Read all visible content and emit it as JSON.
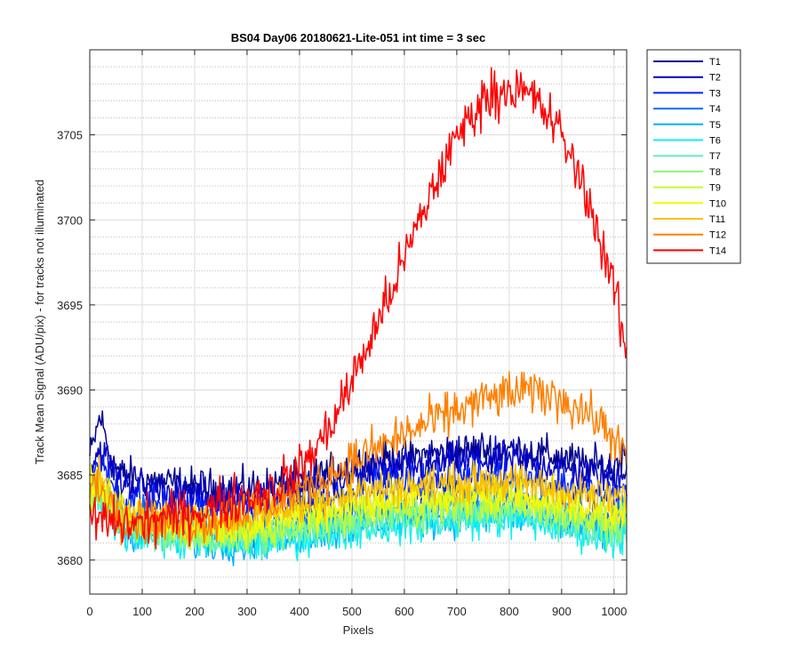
{
  "chart_data": {
    "type": "line",
    "title": "BS04 Day06 20180621-Lite-051 int time = 3 sec",
    "xlabel": "Pixels",
    "ylabel": "Track Mean Signal (ADU/pix) - for tracks not illuminated",
    "xlim": [
      0,
      1024
    ],
    "ylim": [
      3678,
      3710
    ],
    "xticks": [
      0,
      100,
      200,
      300,
      400,
      500,
      600,
      700,
      800,
      900,
      1000
    ],
    "yticks": [
      3680,
      3685,
      3690,
      3695,
      3700,
      3705
    ],
    "grid": true,
    "minor_grid_y": true,
    "legend_position": "outside-top-right",
    "x_sample": [
      0,
      20,
      40,
      60,
      100,
      150,
      200,
      250,
      300,
      350,
      400,
      450,
      500,
      550,
      600,
      650,
      700,
      750,
      800,
      850,
      900,
      950,
      1000,
      1024
    ],
    "series": [
      {
        "name": "T1",
        "color": "#00008f",
        "values": [
          3686,
          3688.5,
          3686,
          3685,
          3684.8,
          3684.5,
          3684.3,
          3684.2,
          3684.2,
          3684.4,
          3684.6,
          3685,
          3685.5,
          3685.9,
          3686,
          3686.2,
          3686.4,
          3686.5,
          3686.5,
          3686.3,
          3686,
          3685.6,
          3685.5,
          3686.5
        ]
      },
      {
        "name": "T2",
        "color": "#0000c8",
        "values": [
          3685.5,
          3686.5,
          3685.5,
          3684.6,
          3684.3,
          3684,
          3683.8,
          3683.7,
          3683.7,
          3683.9,
          3684.1,
          3684.5,
          3684.9,
          3685.2,
          3685.4,
          3685.6,
          3685.8,
          3685.9,
          3685.9,
          3685.7,
          3685.4,
          3685,
          3684.8,
          3685.5
        ]
      },
      {
        "name": "T3",
        "color": "#0020ff",
        "values": [
          3684.8,
          3685.4,
          3684.6,
          3683.8,
          3683.5,
          3683.2,
          3683,
          3682.9,
          3682.9,
          3683.1,
          3683.3,
          3683.6,
          3684,
          3684.3,
          3684.5,
          3684.6,
          3684.8,
          3684.9,
          3684.9,
          3684.7,
          3684.4,
          3684,
          3683.7,
          3684.2
        ]
      },
      {
        "name": "T4",
        "color": "#0070ff",
        "values": [
          3684.2,
          3684.6,
          3683.8,
          3682.8,
          3682.4,
          3682,
          3681.8,
          3681.7,
          3681.7,
          3681.9,
          3682.1,
          3682.4,
          3682.7,
          3682.9,
          3683.1,
          3683.2,
          3683.4,
          3683.5,
          3683.5,
          3683.3,
          3683,
          3682.6,
          3682.3,
          3682.7
        ]
      },
      {
        "name": "T5",
        "color": "#00b0ff",
        "values": [
          3683.6,
          3684,
          3683,
          3682,
          3681.6,
          3681.3,
          3681.1,
          3681,
          3681,
          3681.2,
          3681.4,
          3681.7,
          3682,
          3682.2,
          3682.3,
          3682.4,
          3682.5,
          3682.6,
          3682.6,
          3682.4,
          3682.1,
          3681.8,
          3681.5,
          3681.9
        ]
      },
      {
        "name": "T6",
        "color": "#10f0f0",
        "values": [
          3683.4,
          3683.7,
          3682.8,
          3681.8,
          3681.5,
          3681.2,
          3681,
          3680.9,
          3680.9,
          3681.1,
          3681.3,
          3681.6,
          3681.8,
          3682,
          3682.1,
          3682.2,
          3682.3,
          3682.4,
          3682.4,
          3682.2,
          3681.9,
          3681.6,
          3681.3,
          3681.6
        ]
      },
      {
        "name": "T7",
        "color": "#60f0c0",
        "values": [
          3683.6,
          3683.9,
          3683,
          3682.1,
          3681.8,
          3681.5,
          3681.3,
          3681.2,
          3681.2,
          3681.4,
          3681.6,
          3681.9,
          3682.2,
          3682.4,
          3682.5,
          3682.6,
          3682.7,
          3682.8,
          3682.8,
          3682.6,
          3682.3,
          3682,
          3681.7,
          3682
        ]
      },
      {
        "name": "T8",
        "color": "#90f870",
        "values": [
          3683.8,
          3684,
          3683.1,
          3682.2,
          3681.9,
          3681.6,
          3681.4,
          3681.4,
          3681.5,
          3681.7,
          3681.9,
          3682.2,
          3682.5,
          3682.7,
          3682.8,
          3682.9,
          3683,
          3683.1,
          3683.1,
          3682.9,
          3682.6,
          3682.3,
          3682,
          3682.3
        ]
      },
      {
        "name": "T9",
        "color": "#c8f830",
        "values": [
          3684,
          3684.2,
          3683.3,
          3682.4,
          3682.1,
          3681.9,
          3681.7,
          3681.7,
          3681.8,
          3682,
          3682.3,
          3682.6,
          3682.9,
          3683.1,
          3683.2,
          3683.3,
          3683.4,
          3683.5,
          3683.5,
          3683.3,
          3683,
          3682.7,
          3682.4,
          3682.7
        ]
      },
      {
        "name": "T10",
        "color": "#f8f800",
        "values": [
          3684.2,
          3684.4,
          3683.5,
          3682.6,
          3682.3,
          3682.1,
          3682,
          3682,
          3682.1,
          3682.4,
          3682.7,
          3683,
          3683.3,
          3683.5,
          3683.6,
          3683.7,
          3683.8,
          3683.9,
          3683.9,
          3683.7,
          3683.4,
          3683.1,
          3682.8,
          3683.1
        ]
      },
      {
        "name": "T11",
        "color": "#f8c000",
        "values": [
          3684.4,
          3684.6,
          3683.7,
          3682.8,
          3682.6,
          3682.4,
          3682.3,
          3682.4,
          3682.6,
          3682.9,
          3683.3,
          3683.7,
          3684,
          3684.2,
          3684.3,
          3684.4,
          3684.5,
          3684.6,
          3684.6,
          3684.4,
          3684.1,
          3683.8,
          3683.5,
          3683.8
        ]
      },
      {
        "name": "T12",
        "color": "#ff8000",
        "values": [
          3684.3,
          3684.2,
          3683.4,
          3682.6,
          3682.3,
          3682.2,
          3682.2,
          3682.5,
          3682.9,
          3683.4,
          3684.1,
          3684.9,
          3685.8,
          3686.6,
          3687.4,
          3688.1,
          3688.8,
          3689.4,
          3689.8,
          3689.9,
          3689.5,
          3688.6,
          3687.3,
          3685.8
        ]
      },
      {
        "name": "T14",
        "color": "#ff0000",
        "values": [
          3682.5,
          3682.4,
          3682.2,
          3682.1,
          3682.2,
          3682.5,
          3682.8,
          3683.2,
          3683.7,
          3684.2,
          3685.3,
          3687.4,
          3690.5,
          3694,
          3697.7,
          3701.5,
          3704.9,
          3707.1,
          3707.8,
          3707.1,
          3705,
          3701.3,
          3696,
          3692
        ]
      }
    ]
  }
}
